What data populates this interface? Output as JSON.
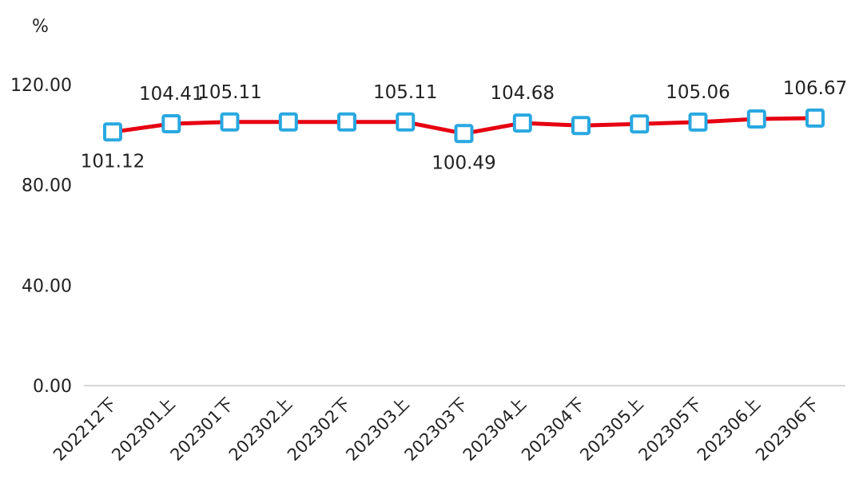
{
  "chart_data": {
    "type": "line",
    "title": "",
    "xlabel": "",
    "ylabel": "",
    "unit": "%",
    "ylim": [
      0,
      120
    ],
    "yticks": [
      "0.00",
      "40.00",
      "80.00",
      "120.00"
    ],
    "grid": false,
    "legend": "none",
    "categories": [
      "202212下",
      "202301上",
      "202301下",
      "202302上",
      "202302下",
      "202303上",
      "202303下",
      "202304上",
      "202304下",
      "202305上",
      "202305下",
      "202306上",
      "202306下"
    ],
    "series": [
      {
        "values": [
          101.12,
          104.41,
          105.11,
          105.11,
          105.11,
          105.11,
          100.49,
          104.68,
          103.7,
          104.3,
          105.06,
          106.3,
          106.67
        ],
        "labels": [
          "101.12",
          "104.41",
          "105.11",
          "",
          "",
          "105.11",
          "100.49",
          "104.68",
          "",
          "",
          "105.06",
          "",
          "106.67"
        ],
        "label_position": [
          "below",
          "above",
          "above",
          "",
          "",
          "above",
          "below",
          "above",
          "",
          "",
          "above",
          "",
          "above"
        ]
      }
    ],
    "colors": {
      "line": "#e60012",
      "marker_stroke": "#29a8e0",
      "marker_fill": "#ffffff",
      "axis": "#c8c8c8"
    }
  }
}
